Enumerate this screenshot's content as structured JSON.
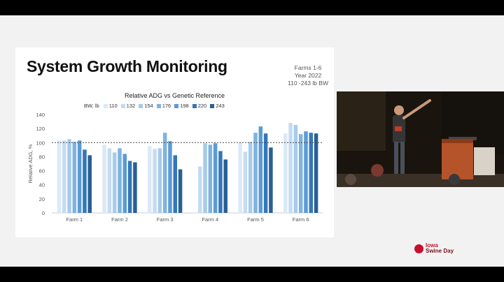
{
  "slide": {
    "title": "System Growth Monitoring",
    "info": [
      "Farms 1-6",
      "Year 2022",
      "110 -243 lb BW"
    ]
  },
  "legend_title": "BW, lb",
  "logo": {
    "line1": "Iowa",
    "line2": "Swine Day"
  },
  "colors": {
    "series": [
      "#dbe9f7",
      "#c4dcf1",
      "#a7cbe9",
      "#7fb3de",
      "#5b9bd5",
      "#3477b9",
      "#2a5f95"
    ]
  },
  "chart_data": {
    "type": "bar",
    "title": "Relative ADG vs Genetic Reference",
    "xlabel": "",
    "ylabel": "Relative ADG, %",
    "ylim": [
      0,
      140
    ],
    "yticks": [
      0,
      20,
      40,
      60,
      80,
      100,
      120,
      140
    ],
    "reference_line": 100,
    "categories": [
      "Farm 1",
      "Farm 2",
      "Farm 3",
      "Farm 4",
      "Farm 5",
      "Farm 6"
    ],
    "series": [
      {
        "name": "110",
        "values": [
          103,
          97,
          95,
          null,
          100,
          113
        ]
      },
      {
        "name": "132",
        "values": [
          103,
          92,
          91,
          66,
          87,
          128
        ]
      },
      {
        "name": "154",
        "values": [
          105,
          86,
          92,
          99,
          101,
          125
        ]
      },
      {
        "name": "176",
        "values": [
          101,
          92,
          114,
          97,
          114,
          112
        ]
      },
      {
        "name": "198",
        "values": [
          103,
          84,
          102,
          99,
          123,
          116
        ]
      },
      {
        "name": "220",
        "values": [
          90,
          74,
          82,
          88,
          113,
          114
        ]
      },
      {
        "name": "243",
        "values": [
          82,
          72,
          62,
          76,
          93,
          113
        ]
      }
    ]
  }
}
